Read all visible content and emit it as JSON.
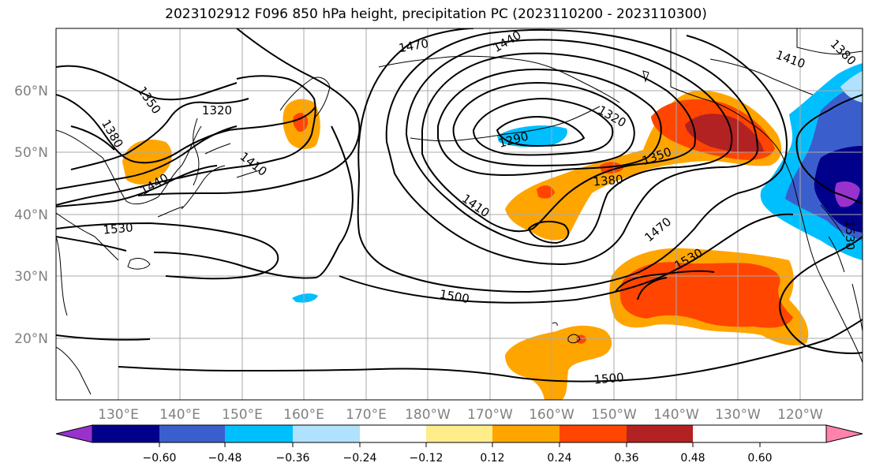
{
  "title": "2023102912 F096 850 hPa height, precipitation PC (2023110200 - 2023110300)",
  "lat_labels": [
    "60°N",
    "50°N",
    "40°N",
    "30°N",
    "20°N"
  ],
  "lon_labels": [
    "130°E",
    "140°E",
    "150°E",
    "160°E",
    "170°E",
    "180°W",
    "170°W",
    "160°W",
    "150°W",
    "140°W",
    "130°W",
    "120°W"
  ],
  "colorbar": {
    "colors": [
      "#9932cc",
      "#00008b",
      "#3a5fcd",
      "#00bfff",
      "#b0e2ff",
      "#ffffff",
      "#ffec8b",
      "#ffa500",
      "#ff4500",
      "#b22222",
      "#ff82ab"
    ],
    "ticks": [
      "−0.60",
      "−0.48",
      "−0.36",
      "−0.24",
      "−0.12",
      "0.12",
      "0.24",
      "0.36",
      "0.48",
      "0.60"
    ]
  },
  "contour_labels": [
    "1350",
    "1320",
    "1380",
    "1410",
    "1440",
    "1530",
    "1470",
    "1440",
    "1290",
    "1320",
    "1350",
    "1380",
    "1410",
    "1470",
    "1530",
    "1500",
    "1500",
    "1410",
    "1380",
    "1530"
  ]
}
